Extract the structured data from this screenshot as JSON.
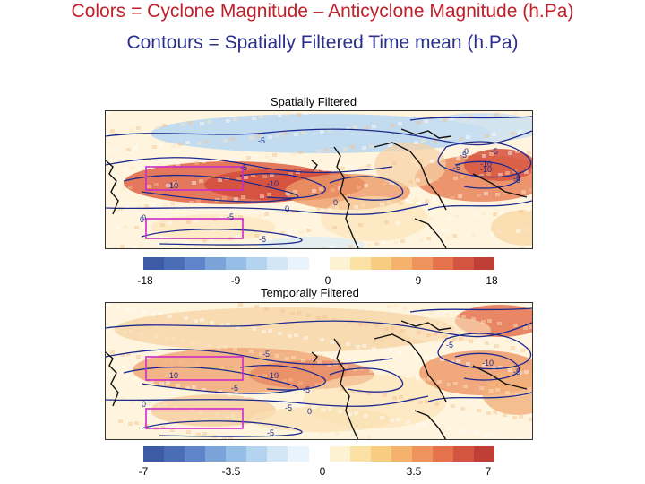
{
  "title_line1": "Colors = Cyclone Magnitude – Anticyclone Magnitude (h.Pa)",
  "title_line2": "Contours = Spatially Filtered Time mean (h.Pa)",
  "panels": [
    {
      "title": "Spatially Filtered",
      "colorbar_ticks": [
        "-18",
        "-9",
        "0",
        "9",
        "18"
      ],
      "contour_labels": [
        "-5",
        "-5",
        "-10",
        "-10",
        "-5",
        "0",
        "-5",
        "0",
        "-5",
        "0",
        "-10",
        "-5",
        "-10",
        "-5",
        "-5",
        "0",
        "0",
        "-5"
      ]
    },
    {
      "title": "Temporally Filtered",
      "colorbar_ticks": [
        "-7",
        "-3.5",
        "0",
        "3.5",
        "7"
      ],
      "contour_labels": [
        "-5",
        "-10",
        "-10",
        "-5",
        "0",
        "-5",
        "-5",
        "-10",
        "-5",
        "-5",
        "0",
        "-5"
      ]
    }
  ],
  "colors": {
    "title1": "#c0202a",
    "title2": "#2b2f8c",
    "contour": "#1c2a8f",
    "box": "#cc2bc7",
    "coast": "#111111"
  },
  "colorbar_colors": [
    "#3d5aa6",
    "#4b6cb7",
    "#5f84c9",
    "#7aa3da",
    "#95bde6",
    "#b4d3ef",
    "#d2e6f6",
    "#e8f3fb",
    "#ffffff",
    "#fdf3d2",
    "#fbe2a4",
    "#f8cd82",
    "#f4b26c",
    "#ee935b",
    "#e4734c",
    "#d35540",
    "#bf3e36"
  ]
}
